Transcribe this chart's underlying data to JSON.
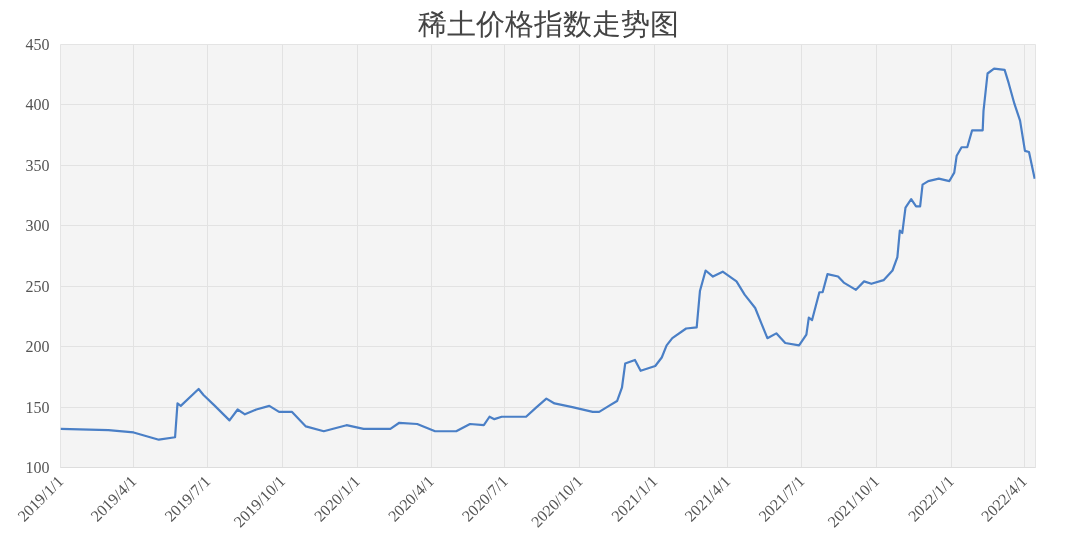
{
  "chart_data": {
    "type": "line",
    "title": "稀土价格指数走势图",
    "x": [
      "2019-01-01",
      "2019-03-01",
      "2019-04-01",
      "2019-05-02",
      "2019-05-22",
      "2019-05-25",
      "2019-05-29",
      "2019-06-20",
      "2019-06-26",
      "2019-07-10",
      "2019-07-28",
      "2019-08-07",
      "2019-08-16",
      "2019-08-30",
      "2019-09-15",
      "2019-09-27",
      "2019-10-13",
      "2019-10-30",
      "2019-11-21",
      "2019-12-19",
      "2020-01-09",
      "2020-02-11",
      "2020-02-22",
      "2020-03-15",
      "2020-04-06",
      "2020-05-02",
      "2020-05-19",
      "2020-06-05",
      "2020-06-12",
      "2020-06-18",
      "2020-06-27",
      "2020-07-27",
      "2020-08-09",
      "2020-08-21",
      "2020-08-31",
      "2020-09-22",
      "2020-10-17",
      "2020-10-25",
      "2020-11-06",
      "2020-11-16",
      "2020-11-22",
      "2020-11-26",
      "2020-12-08",
      "2020-12-15",
      "2021-01-02",
      "2021-01-10",
      "2021-01-16",
      "2021-01-23",
      "2021-02-09",
      "2021-02-22",
      "2021-02-26",
      "2021-03-05",
      "2021-03-14",
      "2021-03-26",
      "2021-04-12",
      "2021-04-22",
      "2021-05-05",
      "2021-05-20",
      "2021-05-31",
      "2021-06-11",
      "2021-06-28",
      "2021-07-07",
      "2021-07-10",
      "2021-07-14",
      "2021-07-23",
      "2021-07-27",
      "2021-08-02",
      "2021-08-15",
      "2021-08-22",
      "2021-09-06",
      "2021-09-16",
      "2021-09-25",
      "2021-10-10",
      "2021-10-21",
      "2021-10-27",
      "2021-10-30",
      "2021-11-02",
      "2021-11-06",
      "2021-11-13",
      "2021-11-19",
      "2021-11-24",
      "2021-11-27",
      "2021-12-04",
      "2021-12-17",
      "2021-12-30",
      "2022-01-05",
      "2022-01-08",
      "2022-01-14",
      "2022-01-21",
      "2022-01-27",
      "2022-02-09",
      "2022-02-10",
      "2022-02-15",
      "2022-02-23",
      "2022-03-08",
      "2022-03-13",
      "2022-03-20",
      "2022-03-27",
      "2022-04-02",
      "2022-04-07",
      "2022-04-14"
    ],
    "series": [
      {
        "color": "#4a7fc6",
        "values": [
          132,
          131,
          129,
          123,
          125,
          153,
          151,
          165,
          160,
          151,
          139,
          148,
          144,
          148,
          151,
          146,
          146,
          134,
          130,
          135,
          132,
          132,
          137,
          136,
          130,
          130,
          136,
          135,
          142,
          140,
          142,
          142,
          150,
          157,
          153,
          150,
          146,
          146,
          151,
          155,
          166,
          186,
          189,
          180,
          184,
          191,
          201,
          207,
          215,
          216,
          246,
          263,
          258,
          262,
          254,
          243,
          232,
          207,
          211,
          203,
          201,
          210,
          224,
          222,
          245,
          245,
          260,
          258,
          253,
          247,
          254,
          252,
          255,
          263,
          274,
          296,
          294,
          315,
          322,
          316,
          316,
          334,
          337,
          339,
          337,
          344,
          358,
          365,
          365,
          379,
          379,
          395,
          426,
          430,
          429,
          418,
          401,
          387,
          362,
          361,
          339
        ]
      }
    ],
    "xlim": [
      "2019-01-01",
      "2022-04-15"
    ],
    "xticks": [
      {
        "value": "2019-01-01",
        "label": "2019/1/1"
      },
      {
        "value": "2019-04-01",
        "label": "2019/4/1"
      },
      {
        "value": "2019-07-01",
        "label": "2019/7/1"
      },
      {
        "value": "2019-10-01",
        "label": "2019/10/1"
      },
      {
        "value": "2020-01-01",
        "label": "2020/1/1"
      },
      {
        "value": "2020-04-01",
        "label": "2020/4/1"
      },
      {
        "value": "2020-07-01",
        "label": "2020/7/1"
      },
      {
        "value": "2020-10-01",
        "label": "2020/10/1"
      },
      {
        "value": "2021-01-01",
        "label": "2021/1/1"
      },
      {
        "value": "2021-04-01",
        "label": "2021/4/1"
      },
      {
        "value": "2021-07-01",
        "label": "2021/7/1"
      },
      {
        "value": "2021-10-01",
        "label": "2021/10/1"
      },
      {
        "value": "2022-01-01",
        "label": "2022/1/1"
      },
      {
        "value": "2022-04-01",
        "label": "2022/4/1"
      }
    ],
    "ylim": [
      100,
      450
    ],
    "yticks": [
      100,
      150,
      200,
      250,
      300,
      350,
      400,
      450
    ],
    "grid": true,
    "line_style": "solid"
  }
}
